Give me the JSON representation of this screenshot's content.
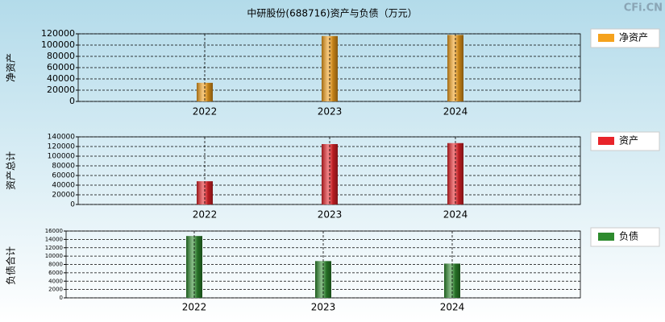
{
  "title": "中研股份(688716)资产与负债（万元）",
  "watermark": "CFi.CN",
  "chart_data": [
    {
      "type": "bar",
      "y_label": "净资产",
      "categories": [
        "2022",
        "2023",
        "2024"
      ],
      "series": [
        {
          "name": "净资产",
          "color": "#f5a21d",
          "values": [
            33000,
            116000,
            118000
          ]
        }
      ],
      "ylim": [
        0,
        120000
      ],
      "yticks": [
        0,
        20000,
        40000,
        60000,
        80000,
        100000,
        120000
      ],
      "grid": true
    },
    {
      "type": "bar",
      "y_label": "资产总计",
      "categories": [
        "2022",
        "2023",
        "2024"
      ],
      "series": [
        {
          "name": "资产",
          "color": "#e8242a",
          "values": [
            48000,
            125000,
            127000
          ]
        }
      ],
      "ylim": [
        0,
        140000
      ],
      "yticks": [
        0,
        20000,
        40000,
        60000,
        80000,
        100000,
        120000,
        140000
      ],
      "grid": true
    },
    {
      "type": "bar",
      "y_label": "负债合计",
      "categories": [
        "2022",
        "2023",
        "2024"
      ],
      "series": [
        {
          "name": "负债",
          "color": "#2e8b2e",
          "values": [
            14800,
            8800,
            8200
          ]
        }
      ],
      "ylim": [
        0,
        16000
      ],
      "yticks": [
        0,
        2000,
        4000,
        6000,
        8000,
        10000,
        12000,
        14000,
        16000
      ],
      "grid": true
    }
  ]
}
